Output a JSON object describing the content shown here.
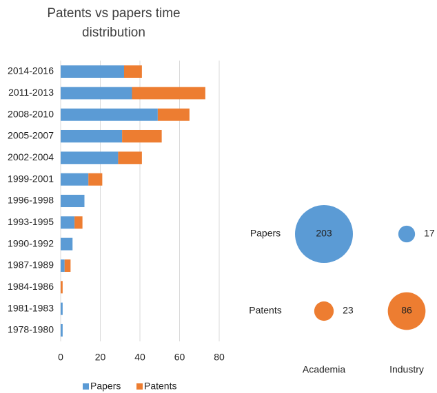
{
  "chart_data": [
    {
      "type": "bar",
      "orientation": "horizontal",
      "stacked": true,
      "title": "Patents vs papers time distribution",
      "categories": [
        "2014-2016",
        "2011-2013",
        "2008-2010",
        "2005-2007",
        "2002-2004",
        "1999-2001",
        "1996-1998",
        "1993-1995",
        "1990-1992",
        "1987-1989",
        "1984-1986",
        "1981-1983",
        "1978-1980"
      ],
      "series": [
        {
          "name": "Papers",
          "color": "#5b9bd5",
          "values": [
            32,
            36,
            49,
            31,
            29,
            14,
            12,
            7,
            6,
            2,
            0,
            1,
            1
          ]
        },
        {
          "name": "Patents",
          "color": "#ed7d31",
          "values": [
            9,
            37,
            16,
            20,
            12,
            7,
            0,
            4,
            0,
            3,
            1,
            0,
            0
          ]
        }
      ],
      "xlim": [
        0,
        80
      ],
      "xticks": [
        0,
        20,
        40,
        60,
        80
      ],
      "grid": true,
      "legend": "bottom"
    },
    {
      "type": "bubble",
      "categories": [
        "Academia",
        "Industry"
      ],
      "series": [
        {
          "name": "Papers",
          "color": "#5b9bd5",
          "values": [
            203,
            17
          ]
        },
        {
          "name": "Patents",
          "color": "#ed7d31",
          "values": [
            23,
            86
          ]
        }
      ]
    }
  ]
}
